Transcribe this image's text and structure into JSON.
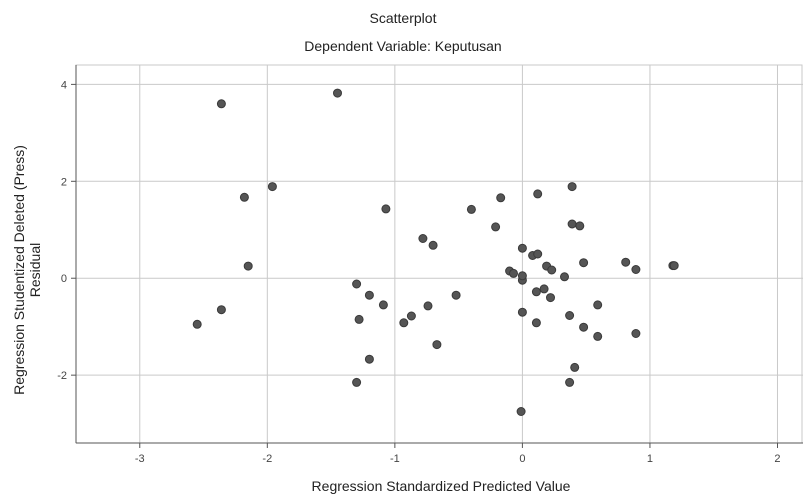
{
  "chart_data": {
    "type": "scatter",
    "title": "Scatterplot",
    "subtitle": "Dependent Variable: Keputusan",
    "xlabel": "Regression Standardized Predicted Value",
    "ylabel_lines": [
      "Regression Studentized Deleted (Press)",
      "Residual"
    ],
    "xlim": [
      -3.5,
      2.2
    ],
    "ylim": [
      -3.4,
      4.4
    ],
    "xticks": [
      -3,
      -2,
      -1,
      0,
      1,
      2
    ],
    "xtick_labels": [
      "-3",
      "-2",
      "-1",
      "0",
      "1",
      "2"
    ],
    "yticks": [
      -2,
      0,
      2,
      4
    ],
    "ytick_labels": [
      "-2",
      "0",
      "2",
      "4"
    ],
    "grid": true,
    "series": [
      {
        "x": [
          -2.36,
          -1.45,
          -2.18,
          -1.96,
          -2.15,
          -2.36,
          -2.55,
          -1.07,
          -0.78,
          -0.7,
          -1.3,
          -1.28,
          -1.2,
          -1.09,
          -0.93,
          -0.87,
          -0.74,
          -0.67,
          -1.2,
          -1.3,
          -0.52,
          -0.4,
          -0.21,
          -0.17,
          -0.1,
          -0.07,
          0.0,
          0.0,
          0.0,
          -0.01,
          0.08,
          0.11,
          0.11,
          0.12,
          0.17,
          0.19,
          0.22,
          0.23,
          0.33,
          0.37,
          0.37,
          0.39,
          0.39,
          0.41,
          0.45,
          0.48,
          0.48,
          0.59,
          0.59,
          0.81,
          0.89,
          0.89,
          1.18,
          1.19,
          0.12,
          0.0
        ],
        "y": [
          3.6,
          3.82,
          1.67,
          1.89,
          0.25,
          -0.65,
          -0.95,
          1.43,
          0.82,
          0.68,
          -0.12,
          -0.85,
          -0.35,
          -0.55,
          -0.92,
          -0.78,
          -0.57,
          -1.37,
          -1.67,
          -2.15,
          -0.35,
          1.42,
          1.06,
          1.66,
          0.15,
          0.1,
          0.62,
          -0.04,
          -0.7,
          -2.75,
          0.47,
          -0.28,
          -0.92,
          1.74,
          -0.22,
          0.25,
          -0.4,
          0.17,
          0.03,
          -0.77,
          -2.15,
          1.89,
          1.12,
          -1.84,
          1.08,
          0.32,
          -1.01,
          -0.55,
          -1.2,
          0.33,
          0.18,
          -1.14,
          0.26,
          0.26,
          0.5,
          0.05
        ]
      }
    ],
    "marker_color": "#555555"
  }
}
